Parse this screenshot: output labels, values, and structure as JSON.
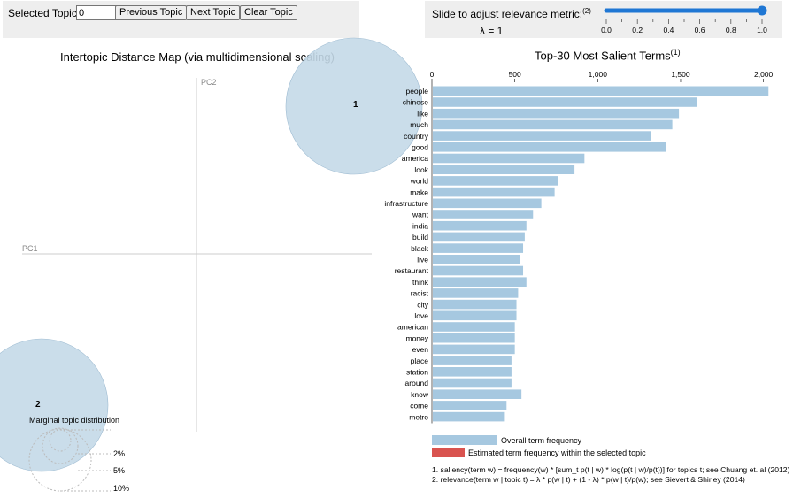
{
  "controls": {
    "topic_label": "Selected Topic:",
    "topic_value": "0",
    "prev_label": "Previous Topic",
    "next_label": "Next Topic",
    "clear_label": "Clear Topic",
    "slider_label": "Slide to adjust relevance metric:",
    "slider_sup": "(2)",
    "lambda_text": "λ = 1",
    "lambda_value": 1,
    "slider_ticks": [
      "0.0",
      "0.2",
      "0.4",
      "0.6",
      "0.8",
      "1.0"
    ],
    "slider_color": "#1f77d4"
  },
  "left": {
    "title": "Intertopic Distance Map (via multidimensional scaling)",
    "pc1_label": "PC1",
    "pc2_label": "PC2",
    "topics": [
      {
        "label": "1"
      },
      {
        "label": "2"
      }
    ],
    "marginal_title": "Marginal topic distribution",
    "marginal_labels": [
      "2%",
      "5%",
      "10%"
    ],
    "circle_color": "#c4d9e8"
  },
  "right": {
    "title": "Top-30 Most Salient Terms",
    "title_sup": "(1)",
    "legend_overall": "Overall term frequency",
    "legend_estimated": "Estimated term frequency within the selected topic",
    "overall_color": "#a6c8e0",
    "estimated_color": "#d9534f",
    "footnote1": "1. saliency(term w) = frequency(w) * [sum_t p(t | w) * log(p(t | w)/p(t))] for topics t; see Chuang et. al (2012)",
    "footnote2": "2. relevance(term w | topic t) = λ * p(w | t) + (1 - λ) * p(w | t)/p(w); see Sievert & Shirley (2014)"
  },
  "chart_data": {
    "type": "bar",
    "orientation": "horizontal",
    "title": "Top-30 Most Salient Terms",
    "xlim": [
      0,
      2050
    ],
    "x_ticks": [
      0,
      500,
      1000,
      1500,
      2000
    ],
    "x_tick_labels": [
      "0",
      "500",
      "1,000",
      "1,500",
      "2,000"
    ],
    "categories": [
      "people",
      "chinese",
      "like",
      "much",
      "country",
      "good",
      "america",
      "look",
      "world",
      "make",
      "infrastructure",
      "want",
      "india",
      "build",
      "black",
      "live",
      "restaurant",
      "think",
      "racist",
      "city",
      "love",
      "american",
      "money",
      "even",
      "place",
      "station",
      "around",
      "know",
      "come",
      "metro"
    ],
    "series": [
      {
        "name": "Overall term frequency",
        "values": [
          2030,
          1600,
          1490,
          1450,
          1320,
          1410,
          920,
          860,
          760,
          740,
          660,
          610,
          570,
          560,
          550,
          530,
          550,
          570,
          520,
          510,
          510,
          500,
          500,
          500,
          480,
          480,
          480,
          540,
          450,
          440
        ]
      }
    ]
  }
}
